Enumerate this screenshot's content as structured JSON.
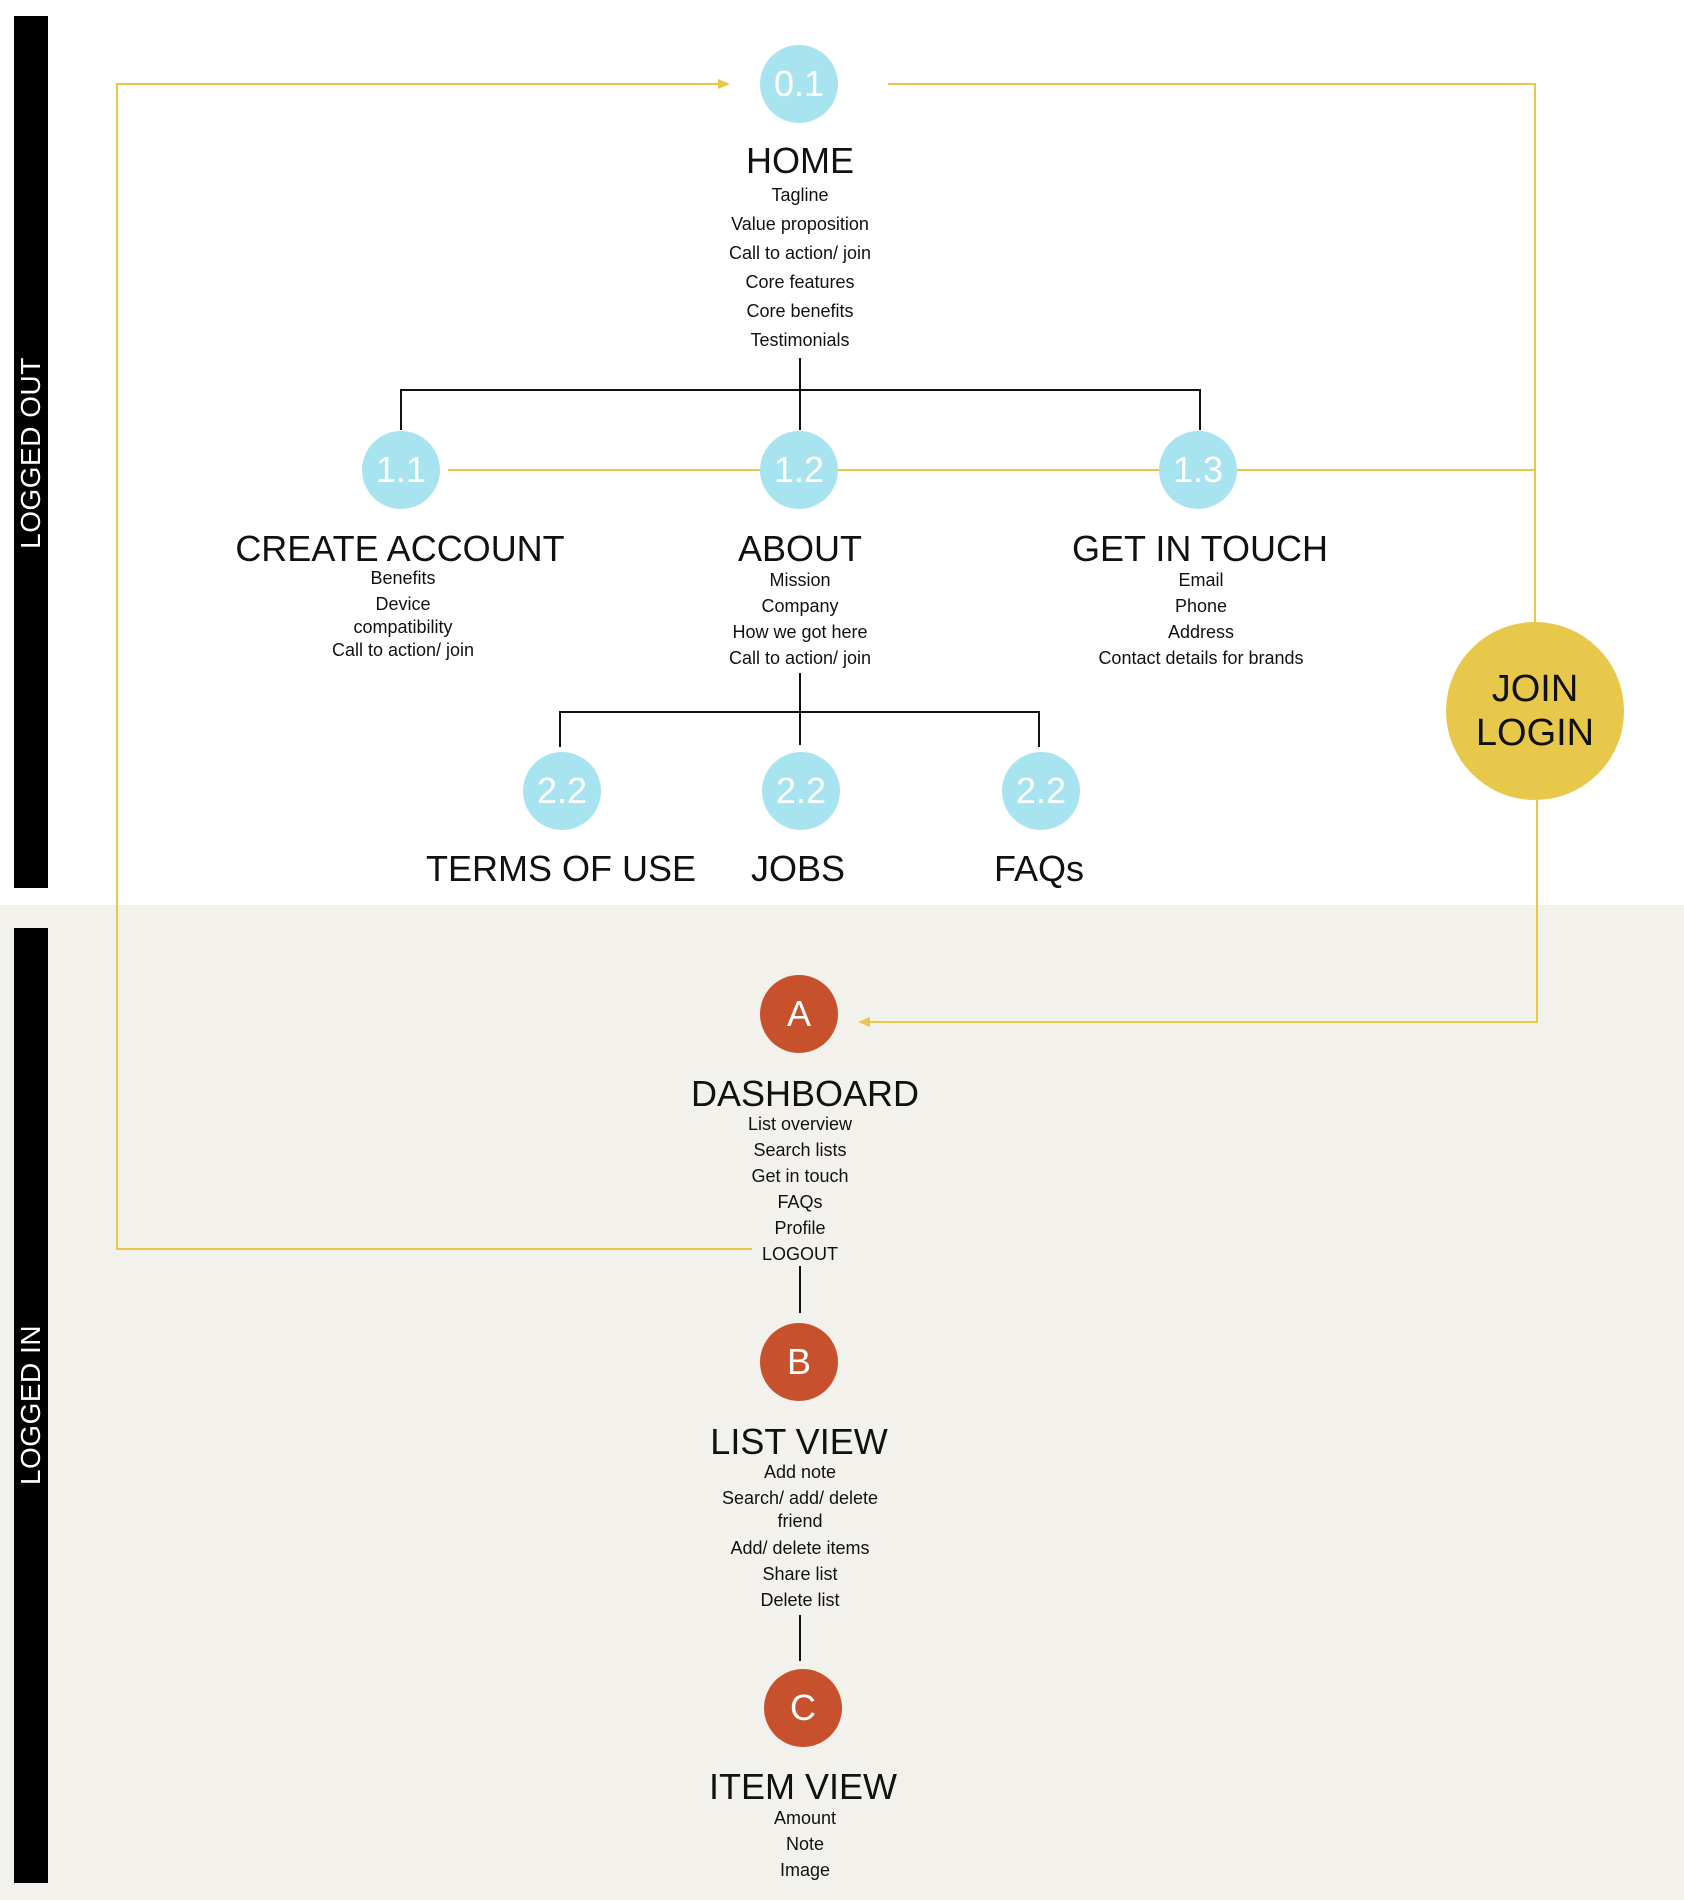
{
  "zones": {
    "logged_out": "LOGGED OUT",
    "logged_in": "LOGGED IN"
  },
  "colors": {
    "page_node": "#a8e4ef",
    "app_node": "#c8512d",
    "join_node": "#e8c84a",
    "flow_line": "#e8c84a",
    "tree_line": "#111111",
    "logged_in_bg": "#f3f1ec"
  },
  "home": {
    "number": "0.1",
    "title": "HOME",
    "items": [
      "Tagline",
      "Value proposition",
      "Call to action/ join",
      "Core features",
      "Core benefits",
      "Testimonials"
    ]
  },
  "create_account": {
    "number": "1.1",
    "title": "CREATE ACCOUNT",
    "items": [
      "Benefits",
      "Device",
      "compatibility",
      "Call to action/ join"
    ]
  },
  "about": {
    "number": "1.2",
    "title": "ABOUT",
    "items": [
      "Mission",
      "Company",
      "How we got here",
      "Call to action/ join"
    ]
  },
  "get_in_touch": {
    "number": "1.3",
    "title": "GET IN TOUCH",
    "items": [
      "Email",
      "Phone",
      "Address",
      "Contact details for brands"
    ]
  },
  "terms": {
    "number": "2.2",
    "title": "TERMS OF USE"
  },
  "jobs": {
    "number": "2.2",
    "title": "JOBS"
  },
  "faqs": {
    "number": "2.2",
    "title": "FAQs"
  },
  "join_login": {
    "line1": "JOIN",
    "line2": "LOGIN"
  },
  "dashboard": {
    "letter": "A",
    "title": "DASHBOARD",
    "items": [
      "List overview",
      "Search lists",
      "Get in touch",
      "FAQs",
      "Profile",
      "LOGOUT"
    ]
  },
  "list_view": {
    "letter": "B",
    "title": "LIST VIEW",
    "items": [
      "Add note",
      "Search/ add/ delete",
      "friend",
      "Add/ delete items",
      "Share list",
      "Delete list"
    ]
  },
  "item_view": {
    "letter": "C",
    "title": "ITEM VIEW",
    "items": [
      "Amount",
      "Note",
      "Image"
    ]
  }
}
